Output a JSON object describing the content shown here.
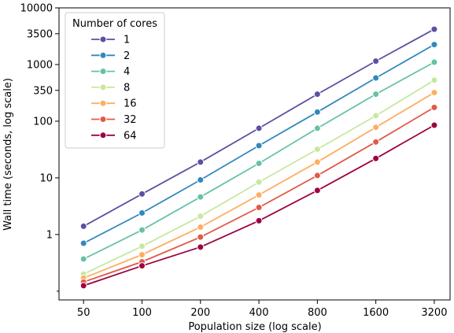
{
  "chart_data": {
    "type": "line",
    "xlabel": "Population size (log scale)",
    "ylabel": "Wall time (seconds, log scale)",
    "x_scale": "log",
    "y_scale": "log",
    "x": [
      50,
      100,
      200,
      400,
      800,
      1600,
      3200
    ],
    "x_tick_labels": [
      "50",
      "100",
      "200",
      "400",
      "800",
      "1600",
      "3200"
    ],
    "y_ticks": [
      1,
      10,
      100,
      350,
      1000,
      3500,
      10000
    ],
    "y_tick_labels": [
      "1",
      "10",
      "100",
      "350",
      "1000",
      "3500",
      "10000"
    ],
    "ylim": [
      0.07,
      10000
    ],
    "legend": {
      "title": "Number of cores",
      "position": "top-left"
    },
    "series": [
      {
        "name": "1",
        "color": "#5e4fa2",
        "values": [
          1.4,
          5.2,
          19,
          75,
          300,
          1150,
          4200
        ]
      },
      {
        "name": "2",
        "color": "#3288bd",
        "values": [
          0.7,
          2.4,
          9.2,
          37,
          145,
          580,
          2250
        ]
      },
      {
        "name": "4",
        "color": "#66c2a5",
        "values": [
          0.37,
          1.2,
          4.6,
          18,
          75,
          300,
          1100
        ]
      },
      {
        "name": "8",
        "color": "#c7e89f",
        "values": [
          0.2,
          0.62,
          2.1,
          8.4,
          32,
          125,
          530
        ]
      },
      {
        "name": "16",
        "color": "#fdae61",
        "values": [
          0.17,
          0.44,
          1.35,
          5.0,
          19,
          78,
          320
        ]
      },
      {
        "name": "32",
        "color": "#e05a48",
        "values": [
          0.145,
          0.33,
          0.9,
          3.0,
          11,
          43,
          175
        ]
      },
      {
        "name": "64",
        "color": "#9e0142",
        "values": [
          0.125,
          0.28,
          0.6,
          1.75,
          6.0,
          22,
          85
        ]
      }
    ]
  }
}
